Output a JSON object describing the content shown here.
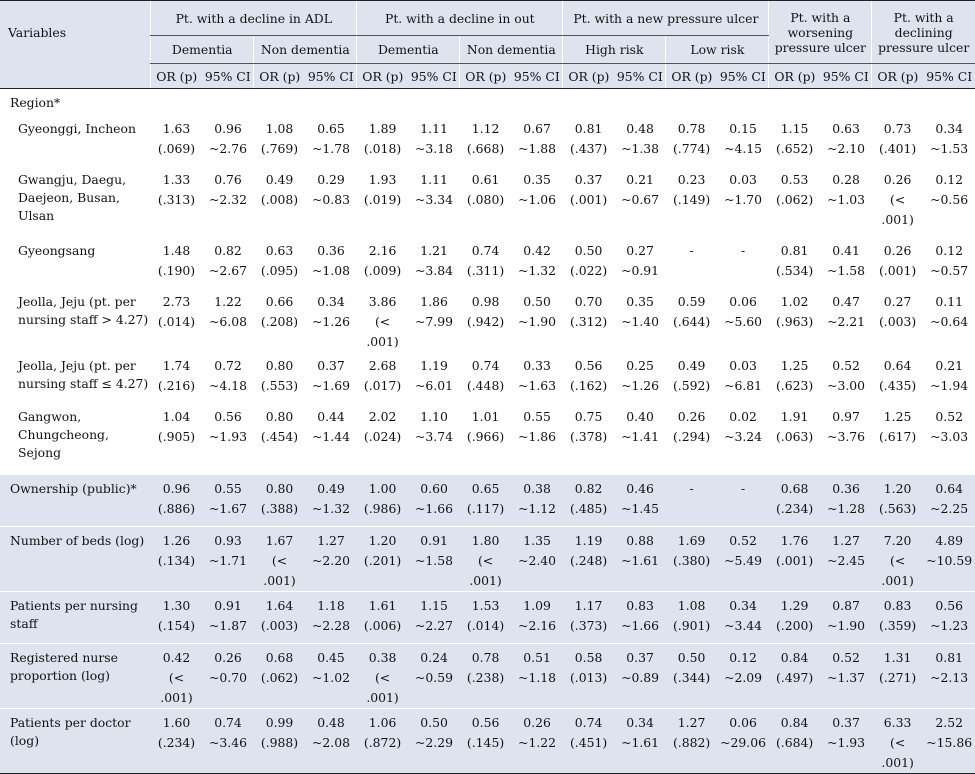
{
  "header": {
    "variables": "Variables",
    "groups": [
      "Pt. with a decline in ADL",
      "Pt. with a decline in out",
      "Pt. with a new pressure ulcer",
      "Pt. with a worsening pressure ulcer",
      "Pt. with a declining pressure ulcer"
    ],
    "subgroups": [
      "Dementia",
      "Non dementia",
      "Dementia",
      "Non dementia",
      "High risk",
      "Low risk"
    ],
    "or_label": "OR (p)",
    "ci_label": "95% CI"
  },
  "region_label": "Region*",
  "rows": [
    {
      "label": "Gyeonggi, Incheon",
      "shade": false,
      "cells": [
        [
          "1.63",
          "(.069)"
        ],
        [
          "0.96",
          "~2.76"
        ],
        [
          "1.08",
          "(.769)"
        ],
        [
          "0.65",
          "~1.78"
        ],
        [
          "1.89",
          "(.018)"
        ],
        [
          "1.11",
          "~3.18"
        ],
        [
          "1.12",
          "(.668)"
        ],
        [
          "0.67",
          "~1.88"
        ],
        [
          "0.81",
          "(.437)"
        ],
        [
          "0.48",
          "~1.38"
        ],
        [
          "0.78",
          "(.774)"
        ],
        [
          "0.15",
          "~4.15"
        ],
        [
          "1.15",
          "(.652)"
        ],
        [
          "0.63",
          "~2.10"
        ],
        [
          "0.73",
          "(.401)"
        ],
        [
          "0.34",
          "~1.53"
        ]
      ]
    },
    {
      "label": "Gwangju, Daegu, Daejeon, Busan, Ulsan",
      "shade": false,
      "cells": [
        [
          "1.33",
          "(.313)"
        ],
        [
          "0.76",
          "~2.32"
        ],
        [
          "0.49",
          "(.008)"
        ],
        [
          "0.29",
          "~0.83"
        ],
        [
          "1.93",
          "(.019)"
        ],
        [
          "1.11",
          "~3.34"
        ],
        [
          "0.61",
          "(.080)"
        ],
        [
          "0.35",
          "~1.06"
        ],
        [
          "0.37",
          "(.001)"
        ],
        [
          "0.21",
          "~0.67"
        ],
        [
          "0.23",
          "(.149)"
        ],
        [
          "0.03",
          "~1.70"
        ],
        [
          "0.53",
          "(.062)"
        ],
        [
          "0.28",
          "~1.03"
        ],
        [
          "0.26",
          "(< .001)"
        ],
        [
          "0.12",
          "~0.56"
        ]
      ]
    },
    {
      "label": "Gyeongsang",
      "shade": false,
      "cells": [
        [
          "1.48",
          "(.190)"
        ],
        [
          "0.82",
          "~2.67"
        ],
        [
          "0.63",
          "(.095)"
        ],
        [
          "0.36",
          "~1.08"
        ],
        [
          "2.16",
          "(.009)"
        ],
        [
          "1.21",
          "~3.84"
        ],
        [
          "0.74",
          "(.311)"
        ],
        [
          "0.42",
          "~1.32"
        ],
        [
          "0.50",
          "(.022)"
        ],
        [
          "0.27",
          "~0.91"
        ],
        [
          "-",
          ""
        ],
        [
          "-",
          ""
        ],
        [
          "0.81",
          "(.534)"
        ],
        [
          "0.41",
          "~1.58"
        ],
        [
          "0.26",
          "(.001)"
        ],
        [
          "0.12",
          "~0.57"
        ]
      ]
    },
    {
      "label": "Jeolla, Jeju (pt. per nursing staff > 4.27)",
      "shade": false,
      "cells": [
        [
          "2.73",
          "(.014)"
        ],
        [
          "1.22",
          "~6.08"
        ],
        [
          "0.66",
          "(.208)"
        ],
        [
          "0.34",
          "~1.26"
        ],
        [
          "3.86",
          "(< .001)"
        ],
        [
          "1.86",
          "~7.99"
        ],
        [
          "0.98",
          "(.942)"
        ],
        [
          "0.50",
          "~1.90"
        ],
        [
          "0.70",
          "(.312)"
        ],
        [
          "0.35",
          "~1.40"
        ],
        [
          "0.59",
          "(.644)"
        ],
        [
          "0.06",
          "~5.60"
        ],
        [
          "1.02",
          "(.963)"
        ],
        [
          "0.47",
          "~2.21"
        ],
        [
          "0.27",
          "(.003)"
        ],
        [
          "0.11",
          "~0.64"
        ]
      ]
    },
    {
      "label": "Jeolla, Jeju (pt. per nursing staff ≤ 4.27)",
      "shade": false,
      "cells": [
        [
          "1.74",
          "(.216)"
        ],
        [
          "0.72",
          "~4.18"
        ],
        [
          "0.80",
          "(.553)"
        ],
        [
          "0.37",
          "~1.69"
        ],
        [
          "2.68",
          "(.017)"
        ],
        [
          "1.19",
          "~6.01"
        ],
        [
          "0.74",
          "(.448)"
        ],
        [
          "0.33",
          "~1.63"
        ],
        [
          "0.56",
          "(.162)"
        ],
        [
          "0.25",
          "~1.26"
        ],
        [
          "0.49",
          "(.592)"
        ],
        [
          "0.03",
          "~6.81"
        ],
        [
          "1.25",
          "(.623)"
        ],
        [
          "0.52",
          "~3.00"
        ],
        [
          "0.64",
          "(.435)"
        ],
        [
          "0.21",
          "~1.94"
        ]
      ]
    },
    {
      "label": "Gangwon, Chungcheong, Sejong",
      "shade": false,
      "cells": [
        [
          "1.04",
          "(.905)"
        ],
        [
          "0.56",
          "~1.93"
        ],
        [
          "0.80",
          "(.454)"
        ],
        [
          "0.44",
          "~1.44"
        ],
        [
          "2.02",
          "(.024)"
        ],
        [
          "1.10",
          "~3.74"
        ],
        [
          "1.01",
          "(.966)"
        ],
        [
          "0.55",
          "~1.86"
        ],
        [
          "0.75",
          "(.378)"
        ],
        [
          "0.40",
          "~1.41"
        ],
        [
          "0.26",
          "(.294)"
        ],
        [
          "0.02",
          "~3.24"
        ],
        [
          "1.91",
          "(.063)"
        ],
        [
          "0.97",
          "~3.76"
        ],
        [
          "1.25",
          "(.617)"
        ],
        [
          "0.52",
          "~3.03"
        ]
      ]
    },
    {
      "label": "Ownership (public)*",
      "shade": true,
      "cells": [
        [
          "0.96",
          "(.886)"
        ],
        [
          "0.55",
          "~1.67"
        ],
        [
          "0.80",
          "(.388)"
        ],
        [
          "0.49",
          "~1.32"
        ],
        [
          "1.00",
          "(.986)"
        ],
        [
          "0.60",
          "~1.66"
        ],
        [
          "0.65",
          "(.117)"
        ],
        [
          "0.38",
          "~1.12"
        ],
        [
          "0.82",
          "(.485)"
        ],
        [
          "0.46",
          "~1.45"
        ],
        [
          "-",
          ""
        ],
        [
          "-",
          ""
        ],
        [
          "0.68",
          "(.234)"
        ],
        [
          "0.36",
          "~1.28"
        ],
        [
          "1.20",
          "(.563)"
        ],
        [
          "0.64",
          "~2.25"
        ]
      ]
    },
    {
      "label": "Number of beds (log)",
      "shade": true,
      "cells": [
        [
          "1.26",
          "(.134)"
        ],
        [
          "0.93",
          "~1.71"
        ],
        [
          "1.67",
          "(< .001)"
        ],
        [
          "1.27",
          "~2.20"
        ],
        [
          "1.20",
          "(.201)"
        ],
        [
          "0.91",
          "~1.58"
        ],
        [
          "1.80",
          "(< .001)"
        ],
        [
          "1.35",
          "~2.40"
        ],
        [
          "1.19",
          "(.248)"
        ],
        [
          "0.88",
          "~1.61"
        ],
        [
          "1.69",
          "(.380)"
        ],
        [
          "0.52",
          "~5.49"
        ],
        [
          "1.76",
          "(.001)"
        ],
        [
          "1.27",
          "~2.45"
        ],
        [
          "7.20",
          "(< .001)"
        ],
        [
          "4.89",
          "~10.59"
        ]
      ]
    },
    {
      "label": "Patients per nursing staff",
      "shade": true,
      "cells": [
        [
          "1.30",
          "(.154)"
        ],
        [
          "0.91",
          "~1.87"
        ],
        [
          "1.64",
          "(.003)"
        ],
        [
          "1.18",
          "~2.28"
        ],
        [
          "1.61",
          "(.006)"
        ],
        [
          "1.15",
          "~2.27"
        ],
        [
          "1.53",
          "(.014)"
        ],
        [
          "1.09",
          "~2.16"
        ],
        [
          "1.17",
          "(.373)"
        ],
        [
          "0.83",
          "~1.66"
        ],
        [
          "1.08",
          "(.901)"
        ],
        [
          "0.34",
          "~3.44"
        ],
        [
          "1.29",
          "(.200)"
        ],
        [
          "0.87",
          "~1.90"
        ],
        [
          "0.83",
          "(.359)"
        ],
        [
          "0.56",
          "~1.23"
        ]
      ]
    },
    {
      "label": "Registered nurse proportion (log)",
      "shade": true,
      "cells": [
        [
          "0.42",
          "(< .001)"
        ],
        [
          "0.26",
          "~0.70"
        ],
        [
          "0.68",
          "(.062)"
        ],
        [
          "0.45",
          "~1.02"
        ],
        [
          "0.38",
          "(< .001)"
        ],
        [
          "0.24",
          "~0.59"
        ],
        [
          "0.78",
          "(.238)"
        ],
        [
          "0.51",
          "~1.18"
        ],
        [
          "0.58",
          "(.013)"
        ],
        [
          "0.37",
          "~0.89"
        ],
        [
          "0.50",
          "(.344)"
        ],
        [
          "0.12",
          "~2.09"
        ],
        [
          "0.84",
          "(.497)"
        ],
        [
          "0.52",
          "~1.37"
        ],
        [
          "1.31",
          "(.271)"
        ],
        [
          "0.81",
          "~2.13"
        ]
      ]
    },
    {
      "label": "Patients per doctor (log)",
      "shade": true,
      "cells": [
        [
          "1.60",
          "(.234)"
        ],
        [
          "0.74",
          "~3.46"
        ],
        [
          "0.99",
          "(.988)"
        ],
        [
          "0.48",
          "~2.08"
        ],
        [
          "1.06",
          "(.872)"
        ],
        [
          "0.50",
          "~2.29"
        ],
        [
          "0.56",
          "(.145)"
        ],
        [
          "0.26",
          "~1.22"
        ],
        [
          "0.74",
          "(.451)"
        ],
        [
          "0.34",
          "~1.61"
        ],
        [
          "1.27",
          "(.882)"
        ],
        [
          "0.06",
          "~29.06"
        ],
        [
          "0.84",
          "(.684)"
        ],
        [
          "0.37",
          "~1.93"
        ],
        [
          "6.33",
          "(< .001)"
        ],
        [
          "2.52",
          "~15.86"
        ]
      ]
    }
  ]
}
